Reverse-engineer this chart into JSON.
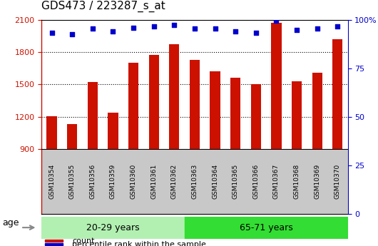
{
  "title": "GDS473 / 223287_s_at",
  "samples": [
    "GSM10354",
    "GSM10355",
    "GSM10356",
    "GSM10359",
    "GSM10360",
    "GSM10361",
    "GSM10362",
    "GSM10363",
    "GSM10364",
    "GSM10365",
    "GSM10366",
    "GSM10367",
    "GSM10368",
    "GSM10369",
    "GSM10370"
  ],
  "counts": [
    1205,
    1135,
    1525,
    1240,
    1700,
    1775,
    1870,
    1730,
    1625,
    1565,
    1505,
    2070,
    1530,
    1610,
    1920
  ],
  "percentile_ranks": [
    90,
    89,
    93,
    91,
    94,
    95,
    96,
    93,
    93,
    91,
    90,
    99,
    92,
    93,
    95
  ],
  "group_labels": [
    "20-29 years",
    "65-71 years"
  ],
  "group_sizes": [
    7,
    8
  ],
  "ylim_left": [
    900,
    2100
  ],
  "ylim_right": [
    0,
    100
  ],
  "yticks_left": [
    900,
    1200,
    1500,
    1800,
    2100
  ],
  "yticks_right": [
    0,
    25,
    50,
    75,
    100
  ],
  "bar_color": "#cc1100",
  "dot_color": "#0000cc",
  "col_bg_color": "#c8c8c8",
  "group1_bg": "#b2f0b2",
  "group2_bg": "#33dd33",
  "legend_count": "count",
  "legend_pct": "percentile rank within the sample",
  "age_label": "age",
  "title_fontsize": 11,
  "tick_fontsize": 8,
  "label_fontsize": 9,
  "grid_yticks": [
    1200,
    1500,
    1800
  ]
}
